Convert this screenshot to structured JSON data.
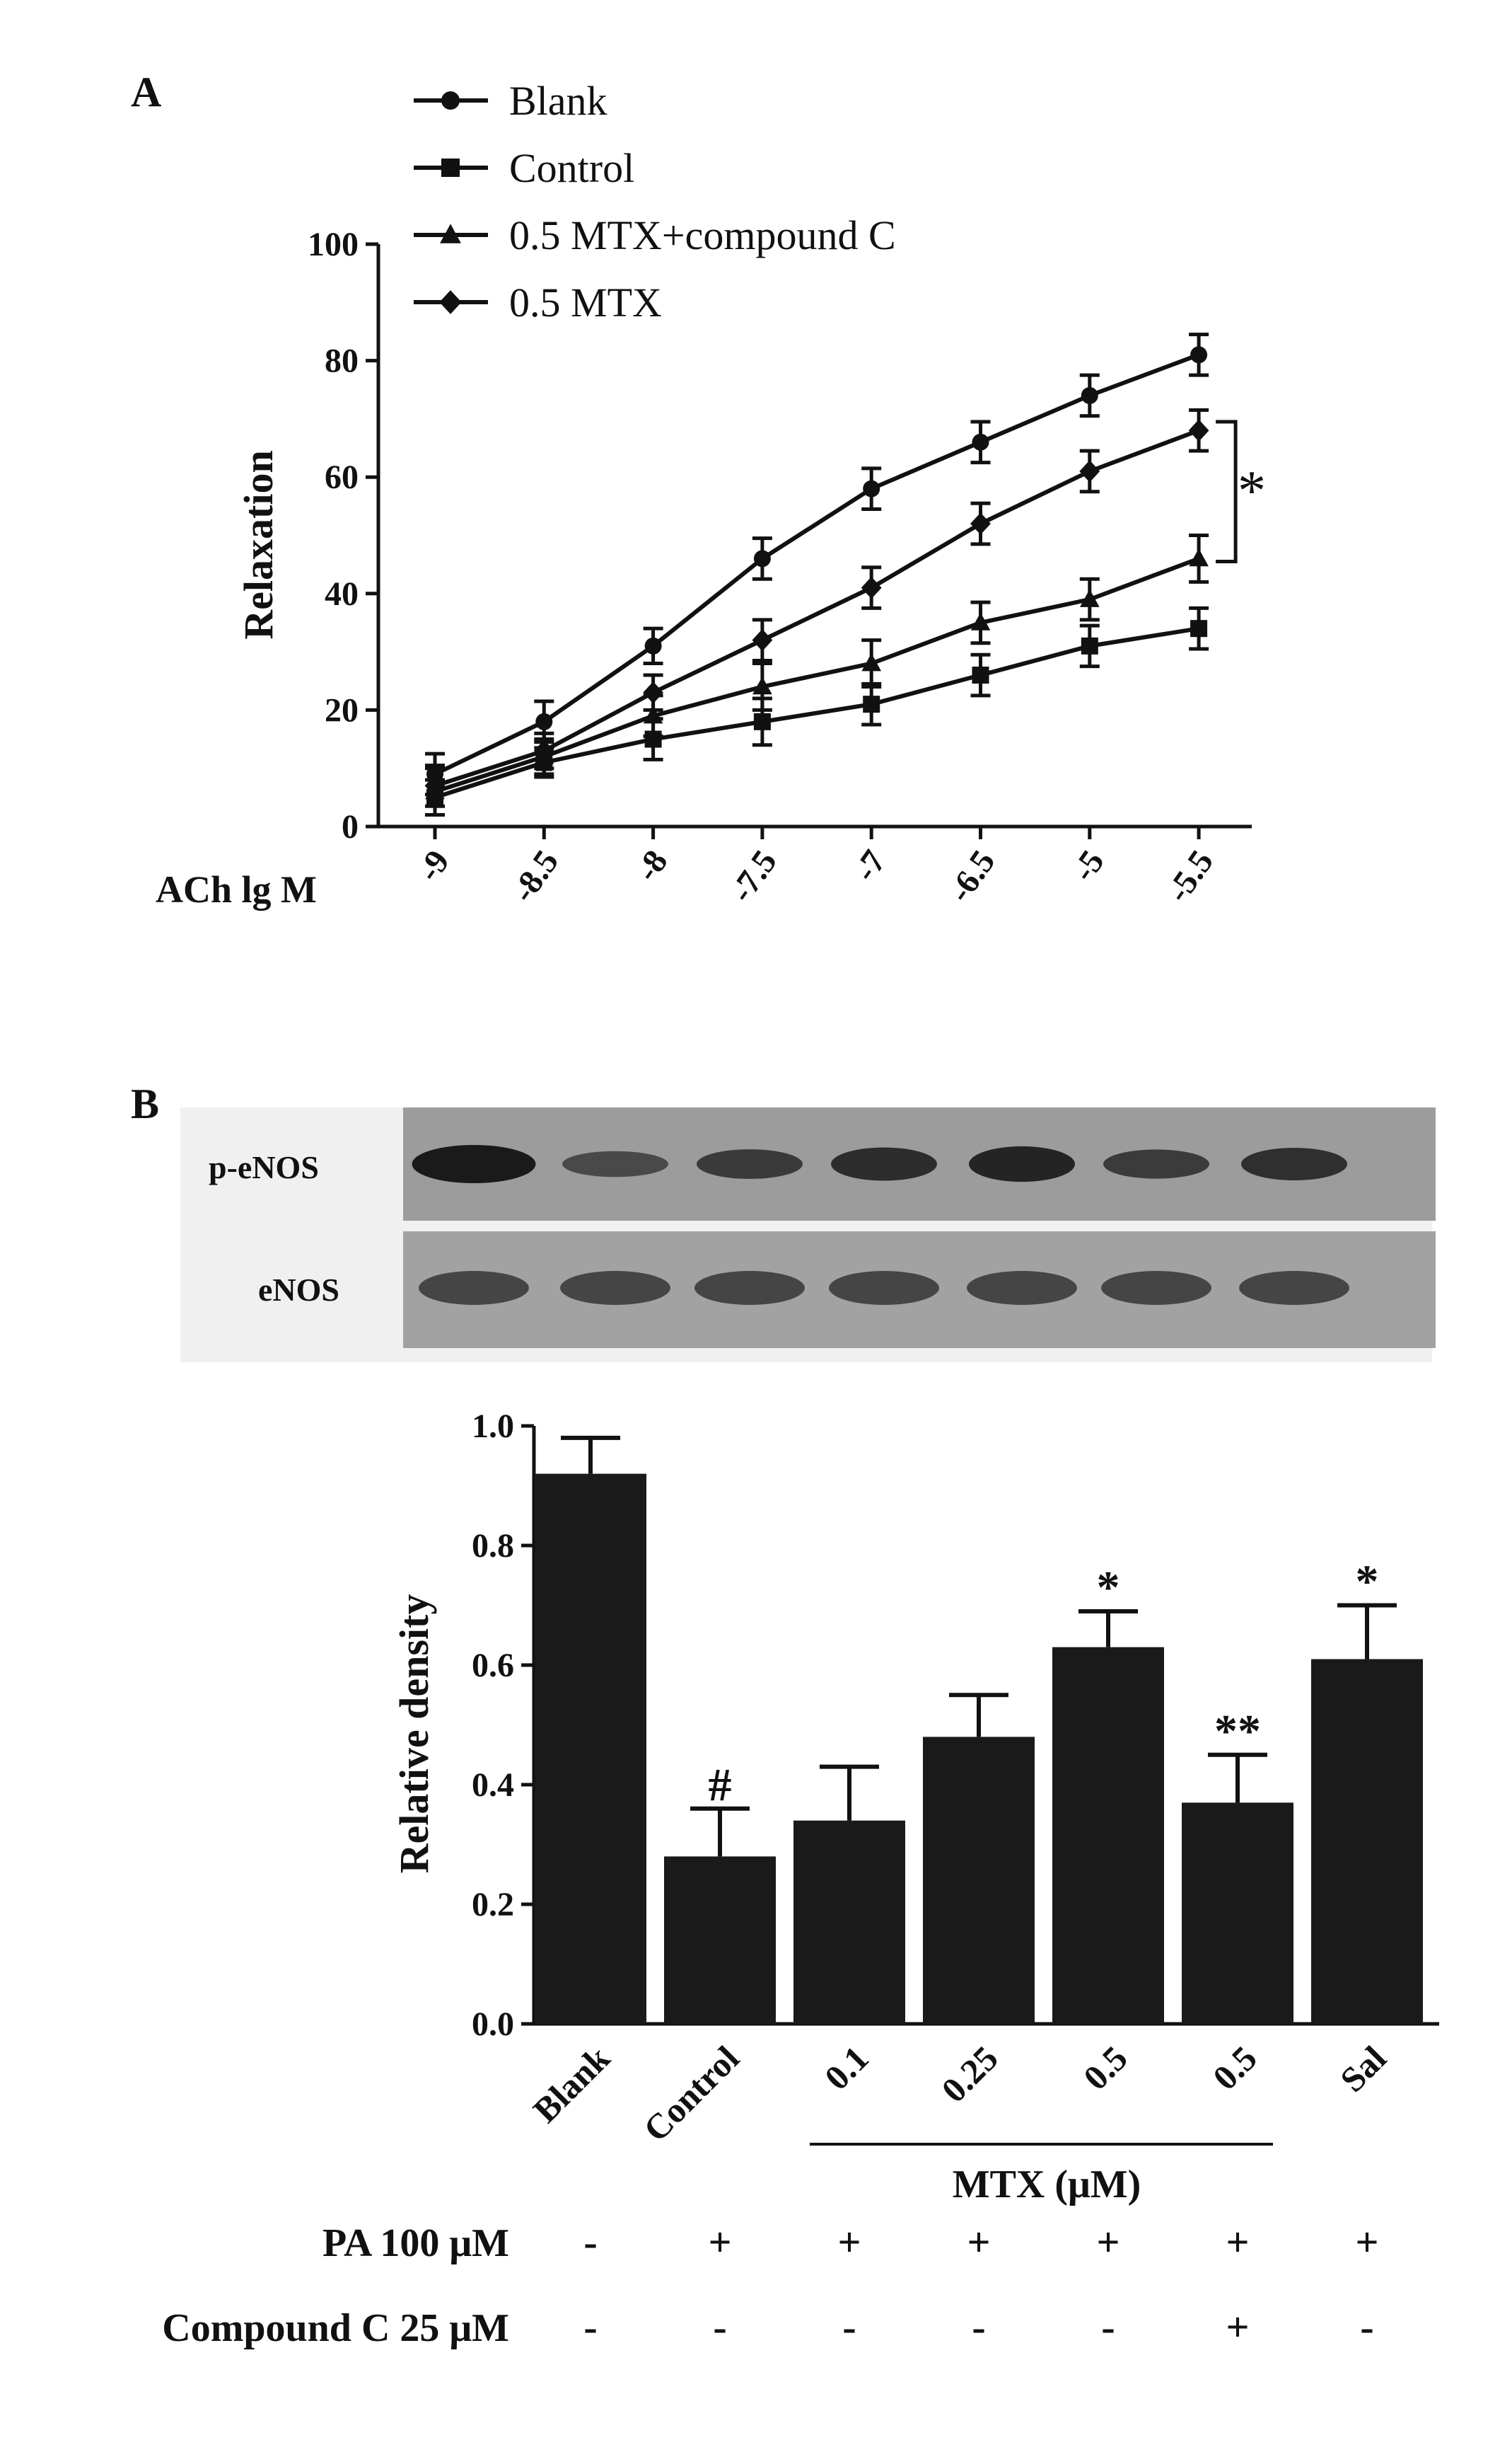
{
  "chart_data": [
    {
      "panel": "A",
      "type": "line",
      "xlabel": "ACh lg M",
      "ylabel": "Relaxation",
      "ylim": [
        0,
        100
      ],
      "yticks": [
        "0",
        "20",
        "40",
        "60",
        "80",
        "100"
      ],
      "categories": [
        "-9",
        "-8.5",
        "-8",
        "-7.5",
        "-7",
        "-6.5",
        "-5",
        "-5.5"
      ],
      "legend_position": "top",
      "series": [
        {
          "name": "Blank",
          "marker": "circle",
          "values": [
            9,
            18,
            31,
            46,
            58,
            66,
            74,
            81
          ],
          "errors": [
            3.5,
            3.5,
            3,
            3.5,
            3.5,
            3.5,
            3.5,
            3.5
          ]
        },
        {
          "name": "Control",
          "marker": "square",
          "values": [
            5,
            11,
            15,
            18,
            21,
            26,
            31,
            34
          ],
          "errors": [
            3,
            2.5,
            3.5,
            4,
            3.5,
            3.5,
            3.5,
            3.5
          ]
        },
        {
          "name": "0.5 MTX+compound C",
          "marker": "triangle",
          "values": [
            6,
            12,
            19,
            24,
            28,
            35,
            39,
            46
          ],
          "errors": [
            4,
            3,
            3.5,
            4,
            4,
            3.5,
            3.5,
            4
          ]
        },
        {
          "name": "0.5 MTX",
          "marker": "diamond",
          "values": [
            7,
            13,
            23,
            32,
            41,
            52,
            61,
            68
          ],
          "errors": [
            3.5,
            3,
            3,
            3.5,
            3.5,
            3.5,
            3.5,
            3.5
          ]
        }
      ],
      "annotation": "*"
    },
    {
      "panel": "B",
      "type": "bar",
      "blot_labels": [
        "p-eNOS",
        "eNOS"
      ],
      "ylabel": "Relative density",
      "ylim": [
        0,
        1.0
      ],
      "yticks": [
        "0.0",
        "0.2",
        "0.4",
        "0.6",
        "0.8",
        "1.0"
      ],
      "categories": [
        "Blank",
        "Control",
        "0.1",
        "0.25",
        "0.5",
        "0.5",
        "Sal"
      ],
      "values": [
        0.92,
        0.28,
        0.34,
        0.48,
        0.63,
        0.37,
        0.61
      ],
      "errors": [
        0.06,
        0.08,
        0.09,
        0.07,
        0.06,
        0.08,
        0.09
      ],
      "significance": [
        "",
        "#",
        "",
        "",
        "*",
        "**",
        "*"
      ],
      "group_label": "MTX (μM)",
      "treatment_rows": [
        {
          "label": "PA 100 μM",
          "marks": [
            "-",
            "+",
            "+",
            "+",
            "+",
            "+",
            "+"
          ]
        },
        {
          "label": "Compound C 25 μM",
          "marks": [
            "-",
            "-",
            "-",
            "-",
            "-",
            "+",
            "-"
          ]
        }
      ]
    }
  ],
  "panel_labels": [
    "A",
    "B"
  ]
}
